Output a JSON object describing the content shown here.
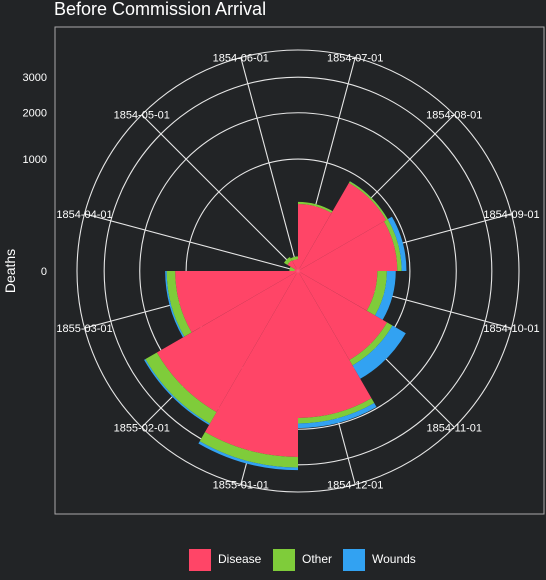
{
  "title": "Before Commission Arrival",
  "chart_data": {
    "type": "polar-area",
    "title": "Before Commission Arrival",
    "ylabel": "Deaths",
    "categories": [
      "1854-07-01",
      "1854-08-01",
      "1854-09-01",
      "1854-10-01",
      "1854-11-01",
      "1854-12-01",
      "1855-01-01",
      "1855-02-01",
      "1855-03-01",
      "1854-04-01",
      "1854-05-01",
      "1854-06-01"
    ],
    "radial_ticks": [
      0,
      1000,
      2000,
      3000
    ],
    "radial_tick_labels": [
      "0",
      "1000",
      "2000",
      "3000"
    ],
    "stacking": "stacked, square-root radial scale",
    "legend_position": "bottom",
    "grid": true,
    "series": [
      {
        "name": "Disease",
        "color": "#FF4567",
        "values": [
          359,
          828,
          788,
          503,
          844,
          1725,
          2761,
          2120,
          1205,
          1,
          12,
          11
        ]
      },
      {
        "name": "Other",
        "color": "#7FCC3A",
        "values": [
          23,
          30,
          70,
          128,
          106,
          131,
          324,
          361,
          172,
          5,
          9,
          6
        ]
      },
      {
        "name": "Wounds",
        "color": "#32A2F2",
        "values": [
          0,
          1,
          81,
          132,
          287,
          114,
          83,
          42,
          32,
          0,
          0,
          0
        ]
      }
    ]
  },
  "legend": {
    "items": [
      {
        "label": "Disease",
        "color": "#FF4567"
      },
      {
        "label": "Other",
        "color": "#7FCC3A"
      },
      {
        "label": "Wounds",
        "color": "#32A2F2"
      }
    ]
  }
}
